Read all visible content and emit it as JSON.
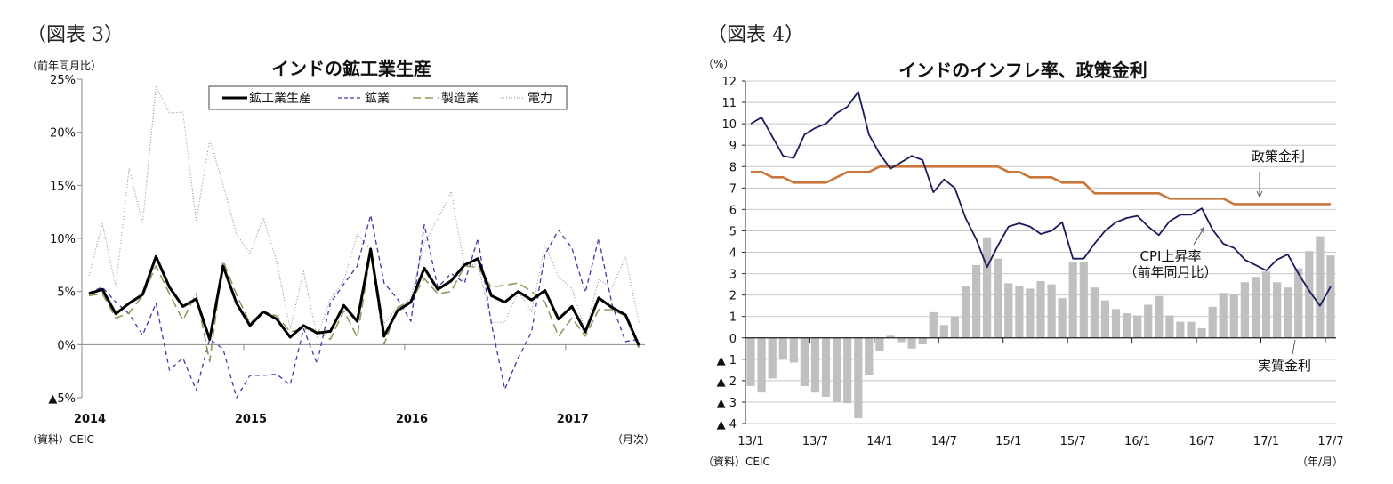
{
  "chart_data": [
    {
      "figure_label": "（図表 3）",
      "type": "line",
      "title": "インドの鉱工業生産",
      "ylabel": "（前年同月比）",
      "xlabel": "（月次）",
      "source": "（資料）CEIC",
      "ylim": [
        -5,
        25
      ],
      "yticks": [
        25,
        20,
        15,
        10,
        5,
        0,
        -5
      ],
      "ytick_labels": [
        "25%",
        "20%",
        "15%",
        "10%",
        "5%",
        "0%",
        "▲5%"
      ],
      "xtick_labels": [
        "2014",
        "2015",
        "2016",
        "2017"
      ],
      "x_start": "2014/1",
      "x_end": "2017/6",
      "grid": false,
      "legend": "top",
      "series": [
        {
          "name": "鉱工業生産",
          "color": "#000000",
          "style": "solid",
          "values": [
            4.8,
            5.2,
            2.9,
            3.9,
            4.7,
            8.3,
            5.4,
            3.6,
            4.3,
            0.5,
            7.4,
            3.9,
            1.8,
            3.1,
            2.4,
            0.7,
            1.8,
            1.1,
            1.25,
            3.7,
            2.2,
            9.0,
            0.8,
            3.2,
            4.0,
            7.2,
            5.2,
            6.0,
            7.5,
            8.1,
            4.6,
            4.0,
            5.0,
            4.2,
            5.1,
            2.4,
            3.6,
            1.2,
            4.4,
            3.5,
            2.8,
            -0.1
          ]
        },
        {
          "name": "鉱業",
          "color": "#3a3aa8",
          "style": "dashed",
          "values": [
            4.9,
            5.4,
            4.0,
            2.9,
            0.9,
            3.9,
            -2.4,
            -1.25,
            -4.3,
            0.5,
            -0.4,
            -5.0,
            -2.9,
            -2.9,
            -2.8,
            -3.8,
            1.5,
            -1.8,
            3.9,
            5.7,
            7.4,
            12.2,
            5.8,
            4.3,
            2.2,
            11.3,
            5.4,
            6.7,
            5.8,
            10.0,
            2.0,
            -4.2,
            -1.25,
            1.2,
            8.5,
            10.8,
            9.1,
            4.9,
            10.0,
            3.75,
            0.3,
            0.5
          ]
        },
        {
          "name": "製造業",
          "color": "#8c9a5e",
          "style": "longdash",
          "values": [
            4.6,
            4.8,
            2.5,
            3.0,
            4.6,
            7.4,
            4.8,
            2.3,
            4.8,
            -1.6,
            7.9,
            4.7,
            2.0,
            3.1,
            2.7,
            1.2,
            1.5,
            1.4,
            0.5,
            3.2,
            0.7,
            8.7,
            0.0,
            3.5,
            4.1,
            6.2,
            4.8,
            5.0,
            7.4,
            7.3,
            5.4,
            5.6,
            5.8,
            5.0,
            4.0,
            0.8,
            2.5,
            0.8,
            3.3,
            3.3,
            2.7,
            -0.3
          ]
        },
        {
          "name": "電力",
          "color": "#8c8c8c",
          "style": "dotted",
          "values": [
            6.5,
            11.4,
            5.4,
            16.6,
            11.4,
            24.3,
            21.8,
            21.9,
            11.6,
            19.3,
            15.1,
            10.4,
            8.6,
            11.9,
            7.8,
            1.5,
            6.9,
            0.7,
            4.3,
            6.0,
            10.4,
            8.9,
            2.0,
            3.5,
            4.3,
            9.6,
            11.8,
            14.4,
            7.4,
            7.6,
            2.1,
            2.1,
            5.0,
            3.1,
            9.4,
            6.4,
            5.3,
            1.25,
            6.1,
            5.4,
            8.25,
            2.1
          ]
        }
      ]
    },
    {
      "figure_label": "（図表 4）",
      "type": "bar+line",
      "title": "インドのインフレ率、政策金利",
      "ylabel": "（%）",
      "xlabel": "（年/月）",
      "source": "（資料）CEIC",
      "ylim": [
        -4,
        12
      ],
      "yticks": [
        12,
        11,
        10,
        9,
        8,
        7,
        6,
        5,
        4,
        3,
        2,
        1,
        0,
        -1,
        -2,
        -3,
        -4
      ],
      "ytick_labels": [
        "12",
        "11",
        "10",
        "9",
        "8",
        "7",
        "6",
        "5",
        "4",
        "3",
        "2",
        "1",
        "0",
        "▲ 1",
        "▲ 2",
        "▲ 3",
        "▲ 4"
      ],
      "xtick_labels": [
        "13/1",
        "13/7",
        "14/1",
        "14/7",
        "15/1",
        "15/7",
        "16/1",
        "16/7",
        "17/1",
        "17/7"
      ],
      "x_start": "13/1",
      "x_end": "17/7",
      "grid": true,
      "annotations": {
        "policy": "政策金利",
        "cpi_1": "CPI上昇率",
        "cpi_2": "（前年同月比）",
        "real": "実質金利"
      },
      "series": [
        {
          "name": "CPI上昇率（前年同月比）",
          "type": "line",
          "color": "#1b1b5c",
          "values": [
            10.0,
            10.3,
            9.4,
            8.5,
            8.4,
            9.5,
            9.8,
            10.0,
            10.5,
            10.8,
            11.5,
            9.5,
            8.6,
            7.9,
            8.2,
            8.5,
            8.3,
            6.8,
            7.4,
            7.0,
            5.6,
            4.6,
            3.3,
            4.3,
            5.2,
            5.35,
            5.2,
            4.85,
            5.0,
            5.4,
            3.7,
            3.7,
            4.4,
            5.0,
            5.4,
            5.6,
            5.7,
            5.2,
            4.8,
            5.45,
            5.75,
            5.75,
            6.05,
            5.05,
            4.4,
            4.2,
            3.65,
            3.4,
            3.15,
            3.65,
            3.9,
            3.0,
            2.2,
            1.5,
            2.4
          ]
        },
        {
          "name": "政策金利",
          "type": "line",
          "color": "#c8783c",
          "values": [
            7.75,
            7.75,
            7.5,
            7.5,
            7.25,
            7.25,
            7.25,
            7.25,
            7.5,
            7.75,
            7.75,
            7.75,
            8,
            8,
            8,
            8,
            8,
            8,
            8,
            8,
            8,
            8,
            8,
            8,
            7.75,
            7.75,
            7.5,
            7.5,
            7.5,
            7.25,
            7.25,
            7.25,
            6.75,
            6.75,
            6.75,
            6.75,
            6.75,
            6.75,
            6.75,
            6.5,
            6.5,
            6.5,
            6.5,
            6.5,
            6.5,
            6.25,
            6.25,
            6.25,
            6.25,
            6.25,
            6.25,
            6.25,
            6.25,
            6.25,
            6.25
          ]
        },
        {
          "name": "実質金利",
          "type": "bar",
          "color": "#c0c0c0",
          "values": [
            -2.25,
            -2.55,
            -1.9,
            -1.0,
            -1.15,
            -2.25,
            -2.55,
            -2.75,
            -3.0,
            -3.05,
            -3.75,
            -1.75,
            -0.6,
            0.1,
            -0.2,
            -0.5,
            -0.3,
            1.2,
            0.6,
            1.0,
            2.4,
            3.4,
            4.7,
            3.7,
            2.55,
            2.4,
            2.3,
            2.65,
            2.5,
            1.85,
            3.55,
            3.55,
            2.35,
            1.75,
            1.35,
            1.15,
            1.05,
            1.55,
            1.95,
            1.05,
            0.75,
            0.75,
            0.45,
            1.45,
            2.1,
            2.05,
            2.6,
            2.85,
            3.1,
            2.6,
            2.35,
            3.25,
            4.05,
            4.75,
            3.85
          ]
        }
      ]
    }
  ]
}
